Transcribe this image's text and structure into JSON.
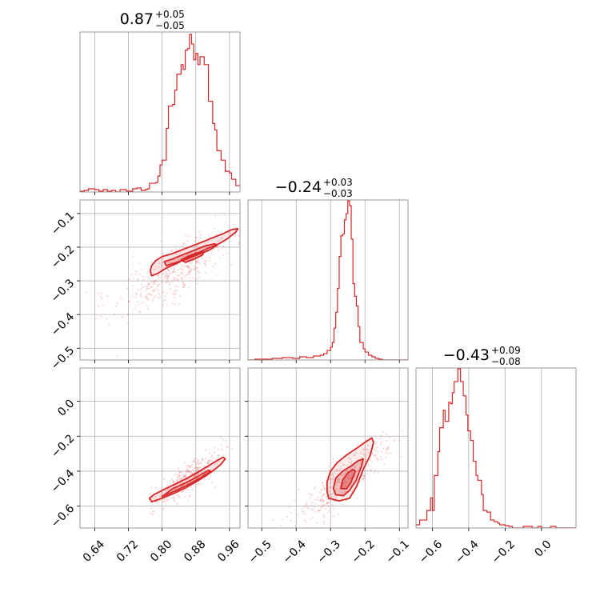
{
  "chart_data": {
    "type": "corner",
    "color": "#d62728",
    "grid": true,
    "panels": {
      "p0_hist": {
        "type": "histogram",
        "title_value": "0.87",
        "title_plus": "+0.05",
        "title_minus": "−0.05",
        "xlim": [
          0.605,
          0.985
        ],
        "ylim": [
          0,
          1
        ],
        "xticks": [
          0.64,
          0.72,
          0.8,
          0.88,
          0.96
        ],
        "steps": [
          [
            0.605,
            0.005
          ],
          [
            0.615,
            0.01
          ],
          [
            0.625,
            0.02
          ],
          [
            0.64,
            0.015
          ],
          [
            0.65,
            0.005
          ],
          [
            0.66,
            0.015
          ],
          [
            0.67,
            0.005
          ],
          [
            0.68,
            0.01
          ],
          [
            0.69,
            0.0
          ],
          [
            0.7,
            0.015
          ],
          [
            0.715,
            0.005
          ],
          [
            0.73,
            0.02
          ],
          [
            0.74,
            0.025
          ],
          [
            0.75,
            0.01
          ],
          [
            0.76,
            0.015
          ],
          [
            0.765,
            0.02
          ],
          [
            0.77,
            0.055
          ],
          [
            0.785,
            0.06
          ],
          [
            0.79,
            0.1
          ],
          [
            0.795,
            0.17
          ],
          [
            0.8,
            0.2
          ],
          [
            0.81,
            0.4
          ],
          [
            0.815,
            0.54
          ],
          [
            0.825,
            0.55
          ],
          [
            0.83,
            0.64
          ],
          [
            0.835,
            0.74
          ],
          [
            0.845,
            0.8
          ],
          [
            0.85,
            0.77
          ],
          [
            0.855,
            0.89
          ],
          [
            0.86,
            0.9
          ],
          [
            0.865,
            0.99
          ],
          [
            0.87,
            0.93
          ],
          [
            0.875,
            0.83
          ],
          [
            0.88,
            0.87
          ],
          [
            0.885,
            0.8
          ],
          [
            0.89,
            0.85
          ],
          [
            0.9,
            0.8
          ],
          [
            0.91,
            0.57
          ],
          [
            0.92,
            0.43
          ],
          [
            0.925,
            0.39
          ],
          [
            0.93,
            0.26
          ],
          [
            0.94,
            0.2
          ],
          [
            0.95,
            0.13
          ],
          [
            0.96,
            0.12
          ],
          [
            0.965,
            0.08
          ],
          [
            0.975,
            0.04
          ],
          [
            0.985,
            0.04
          ]
        ]
      },
      "p1_hist": {
        "type": "histogram",
        "title_value": "−0.24",
        "title_plus": "+0.03",
        "title_minus": "−0.03",
        "xlim": [
          -0.54,
          -0.075
        ],
        "ylim": [
          0,
          1
        ],
        "xticks": [
          -0.5,
          -0.4,
          -0.3,
          -0.2,
          -0.1
        ],
        "steps": [
          [
            -0.54,
            0.0
          ],
          [
            -0.52,
            0.005
          ],
          [
            -0.5,
            0.005
          ],
          [
            -0.47,
            0.01
          ],
          [
            -0.44,
            0.015
          ],
          [
            -0.41,
            0.01
          ],
          [
            -0.39,
            0.02
          ],
          [
            -0.37,
            0.015
          ],
          [
            -0.35,
            0.025
          ],
          [
            -0.33,
            0.03
          ],
          [
            -0.32,
            0.04
          ],
          [
            -0.31,
            0.06
          ],
          [
            -0.3,
            0.08
          ],
          [
            -0.295,
            0.11
          ],
          [
            -0.29,
            0.2
          ],
          [
            -0.285,
            0.3
          ],
          [
            -0.28,
            0.45
          ],
          [
            -0.275,
            0.65
          ],
          [
            -0.27,
            0.78
          ],
          [
            -0.265,
            0.79
          ],
          [
            -0.26,
            0.88
          ],
          [
            -0.255,
            0.92
          ],
          [
            -0.25,
            1.0
          ],
          [
            -0.245,
            0.97
          ],
          [
            -0.24,
            0.76
          ],
          [
            -0.235,
            0.48
          ],
          [
            -0.23,
            0.4
          ],
          [
            -0.225,
            0.34
          ],
          [
            -0.22,
            0.21
          ],
          [
            -0.215,
            0.11
          ],
          [
            -0.205,
            0.07
          ],
          [
            -0.2,
            0.05
          ],
          [
            -0.19,
            0.03
          ],
          [
            -0.18,
            0.02
          ],
          [
            -0.17,
            0.01
          ],
          [
            -0.16,
            0.005
          ],
          [
            -0.15,
            0.0
          ],
          [
            -0.075,
            0.0
          ]
        ]
      },
      "p2_hist": {
        "type": "histogram",
        "title_value": "−0.43",
        "title_plus": "+0.09",
        "title_minus": "−0.08",
        "xlim": [
          -0.69,
          0.19
        ],
        "ylim": [
          0,
          1
        ],
        "xticks": [
          -0.6,
          -0.4,
          -0.2,
          0.0
        ],
        "steps": [
          [
            -0.69,
            0.02
          ],
          [
            -0.67,
            0.05
          ],
          [
            -0.64,
            0.05
          ],
          [
            -0.63,
            0.11
          ],
          [
            -0.61,
            0.19
          ],
          [
            -0.6,
            0.11
          ],
          [
            -0.59,
            0.33
          ],
          [
            -0.57,
            0.48
          ],
          [
            -0.56,
            0.63
          ],
          [
            -0.54,
            0.74
          ],
          [
            -0.53,
            0.67
          ],
          [
            -0.51,
            0.79
          ],
          [
            -0.5,
            0.78
          ],
          [
            -0.49,
            0.85
          ],
          [
            -0.48,
            0.92
          ],
          [
            -0.47,
            0.92
          ],
          [
            -0.46,
            1.0
          ],
          [
            -0.445,
            0.92
          ],
          [
            -0.43,
            0.83
          ],
          [
            -0.415,
            0.71
          ],
          [
            -0.405,
            0.61
          ],
          [
            -0.39,
            0.55
          ],
          [
            -0.375,
            0.42
          ],
          [
            -0.36,
            0.33
          ],
          [
            -0.35,
            0.3
          ],
          [
            -0.33,
            0.21
          ],
          [
            -0.32,
            0.11
          ],
          [
            -0.3,
            0.1
          ],
          [
            -0.29,
            0.1
          ],
          [
            -0.28,
            0.05
          ],
          [
            -0.26,
            0.04
          ],
          [
            -0.24,
            0.03
          ],
          [
            -0.23,
            0.02
          ],
          [
            -0.2,
            0.015
          ],
          [
            -0.18,
            0.01
          ],
          [
            -0.16,
            0.0
          ],
          [
            -0.1,
            0.01
          ],
          [
            -0.05,
            0.0
          ],
          [
            -0.02,
            0.01
          ],
          [
            0.0,
            0.0
          ],
          [
            0.05,
            0.01
          ],
          [
            0.08,
            0.0
          ],
          [
            0.19,
            0.0
          ]
        ]
      },
      "p10": {
        "type": "contour",
        "xlim": [
          0.605,
          0.985
        ],
        "ylim": [
          -0.535,
          -0.06
        ],
        "xticks": [
          0.64,
          0.72,
          0.8,
          0.88,
          0.96
        ],
        "yticks": [
          -0.5,
          -0.4,
          -0.3,
          -0.2,
          -0.1
        ],
        "scatter_mean": [
          0.835,
          -0.27
        ],
        "scatter_dir": [
          0.12,
          0.1
        ],
        "scatter_spread": [
          0.1,
          0.03
        ],
        "scatter_count": 380,
        "contours": [
          {
            "points": [
              [
                0.775,
                -0.285
              ],
              [
                0.79,
                -0.278
              ],
              [
                0.81,
                -0.262
              ],
              [
                0.835,
                -0.248
              ],
              [
                0.86,
                -0.232
              ],
              [
                0.885,
                -0.217
              ],
              [
                0.91,
                -0.203
              ],
              [
                0.935,
                -0.19
              ],
              [
                0.955,
                -0.175
              ],
              [
                0.975,
                -0.155
              ],
              [
                0.98,
                -0.145
              ],
              [
                0.965,
                -0.148
              ],
              [
                0.945,
                -0.16
              ],
              [
                0.92,
                -0.172
              ],
              [
                0.895,
                -0.185
              ],
              [
                0.87,
                -0.197
              ],
              [
                0.845,
                -0.209
              ],
              [
                0.82,
                -0.221
              ],
              [
                0.8,
                -0.228
              ],
              [
                0.785,
                -0.24
              ],
              [
                0.775,
                -0.255
              ],
              [
                0.772,
                -0.27
              ]
            ],
            "fill": 0.25
          },
          {
            "points": [
              [
                0.81,
                -0.255
              ],
              [
                0.835,
                -0.245
              ],
              [
                0.86,
                -0.235
              ],
              [
                0.885,
                -0.222
              ],
              [
                0.91,
                -0.21
              ],
              [
                0.93,
                -0.195
              ],
              [
                0.925,
                -0.19
              ],
              [
                0.9,
                -0.197
              ],
              [
                0.875,
                -0.21
              ],
              [
                0.85,
                -0.222
              ],
              [
                0.825,
                -0.235
              ],
              [
                0.805,
                -0.243
              ]
            ],
            "fill": 0.55
          },
          {
            "points": [
              [
                0.855,
                -0.245
              ],
              [
                0.875,
                -0.236
              ],
              [
                0.895,
                -0.224
              ],
              [
                0.9,
                -0.214
              ],
              [
                0.88,
                -0.218
              ],
              [
                0.86,
                -0.228
              ],
              [
                0.845,
                -0.238
              ]
            ],
            "fill": 0.85
          }
        ]
      },
      "p20": {
        "type": "contour",
        "xlim": [
          0.605,
          0.985
        ],
        "ylim": [
          -0.725,
          0.19
        ],
        "xticks": [
          0.64,
          0.72,
          0.8,
          0.88,
          0.96
        ],
        "yticks": [
          -0.6,
          -0.4,
          -0.2,
          0.0
        ],
        "scatter_mean": [
          0.86,
          -0.44
        ],
        "scatter_dir": [
          0.12,
          0.28
        ],
        "scatter_spread": [
          0.09,
          0.02
        ],
        "scatter_count": 300,
        "contours": [
          {
            "points": [
              [
                0.775,
                -0.575
              ],
              [
                0.8,
                -0.555
              ],
              [
                0.83,
                -0.525
              ],
              [
                0.86,
                -0.49
              ],
              [
                0.885,
                -0.455
              ],
              [
                0.905,
                -0.425
              ],
              [
                0.925,
                -0.39
              ],
              [
                0.94,
                -0.36
              ],
              [
                0.95,
                -0.33
              ],
              [
                0.945,
                -0.32
              ],
              [
                0.93,
                -0.34
              ],
              [
                0.91,
                -0.37
              ],
              [
                0.885,
                -0.405
              ],
              [
                0.86,
                -0.44
              ],
              [
                0.83,
                -0.475
              ],
              [
                0.8,
                -0.51
              ],
              [
                0.78,
                -0.535
              ],
              [
                0.77,
                -0.555
              ]
            ],
            "fill": 0.3
          },
          {
            "points": [
              [
                0.8,
                -0.545
              ],
              [
                0.83,
                -0.515
              ],
              [
                0.86,
                -0.48
              ],
              [
                0.89,
                -0.44
              ],
              [
                0.915,
                -0.4
              ],
              [
                0.91,
                -0.395
              ],
              [
                0.885,
                -0.43
              ],
              [
                0.855,
                -0.468
              ],
              [
                0.825,
                -0.5
              ]
            ],
            "fill": 0.6
          }
        ]
      },
      "p21": {
        "type": "contour",
        "xlim": [
          -0.54,
          -0.075
        ],
        "ylim": [
          -0.725,
          0.19
        ],
        "xticks": [
          -0.5,
          -0.4,
          -0.3,
          -0.2,
          -0.1
        ],
        "yticks": [
          -0.6,
          -0.4,
          -0.2,
          0.0
        ],
        "scatter_mean": [
          -0.27,
          -0.47
        ],
        "scatter_dir": [
          0.12,
          0.22
        ],
        "scatter_spread": [
          0.14,
          0.03
        ],
        "scatter_count": 360,
        "contours": [
          {
            "points": [
              [
                -0.305,
                -0.555
              ],
              [
                -0.275,
                -0.57
              ],
              [
                -0.245,
                -0.555
              ],
              [
                -0.225,
                -0.49
              ],
              [
                -0.205,
                -0.39
              ],
              [
                -0.185,
                -0.31
              ],
              [
                -0.175,
                -0.235
              ],
              [
                -0.18,
                -0.21
              ],
              [
                -0.2,
                -0.235
              ],
              [
                -0.225,
                -0.27
              ],
              [
                -0.255,
                -0.31
              ],
              [
                -0.28,
                -0.35
              ],
              [
                -0.3,
                -0.4
              ],
              [
                -0.31,
                -0.46
              ],
              [
                -0.31,
                -0.52
              ]
            ],
            "fill": 0.2
          },
          {
            "points": [
              [
                -0.285,
                -0.535
              ],
              [
                -0.262,
                -0.54
              ],
              [
                -0.245,
                -0.51
              ],
              [
                -0.225,
                -0.45
              ],
              [
                -0.21,
                -0.37
              ],
              [
                -0.205,
                -0.33
              ],
              [
                -0.22,
                -0.34
              ],
              [
                -0.24,
                -0.37
              ],
              [
                -0.265,
                -0.4
              ],
              [
                -0.285,
                -0.44
              ],
              [
                -0.292,
                -0.5
              ]
            ],
            "fill": 0.5
          },
          {
            "points": [
              [
                -0.27,
                -0.5
              ],
              [
                -0.253,
                -0.5
              ],
              [
                -0.24,
                -0.46
              ],
              [
                -0.228,
                -0.4
              ],
              [
                -0.235,
                -0.39
              ],
              [
                -0.25,
                -0.41
              ],
              [
                -0.265,
                -0.45
              ]
            ],
            "fill": 0.8
          }
        ]
      }
    }
  }
}
